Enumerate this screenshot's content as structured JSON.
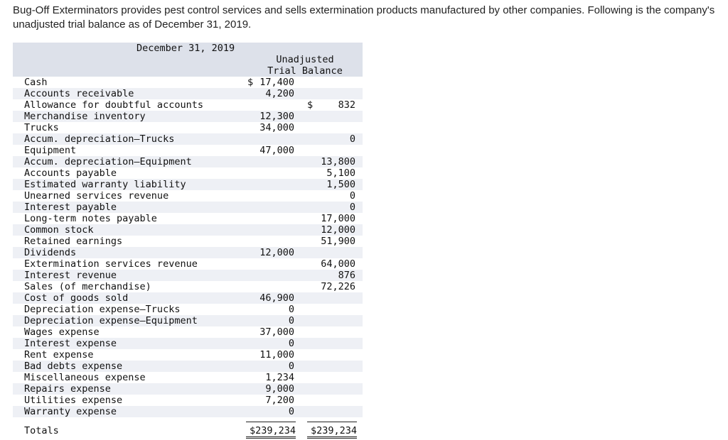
{
  "intro_text": "Bug-Off Exterminators provides pest control services and sells extermination products manufactured by other companies. Following is the company's unadjusted trial balance as of December 31, 2019.",
  "table": {
    "date_header": "December 31, 2019",
    "column_header_line1": "Unadjusted",
    "column_header_line2": "Trial Balance",
    "rows": [
      {
        "name": "Cash",
        "debit": "17,400",
        "credit": "",
        "debit_symbol": "$",
        "credit_symbol": ""
      },
      {
        "name": "Accounts receivable",
        "debit": "4,200",
        "credit": "",
        "debit_symbol": "",
        "credit_symbol": ""
      },
      {
        "name": "Allowance for doubtful accounts",
        "debit": "",
        "credit": "832",
        "debit_symbol": "",
        "credit_symbol": "$"
      },
      {
        "name": "Merchandise inventory",
        "debit": "12,300",
        "credit": "",
        "debit_symbol": "",
        "credit_symbol": ""
      },
      {
        "name": "Trucks",
        "debit": "34,000",
        "credit": "",
        "debit_symbol": "",
        "credit_symbol": ""
      },
      {
        "name": "Accum. depreciation—Trucks",
        "debit": "",
        "credit": "0",
        "debit_symbol": "",
        "credit_symbol": ""
      },
      {
        "name": "Equipment",
        "debit": "47,000",
        "credit": "",
        "debit_symbol": "",
        "credit_symbol": ""
      },
      {
        "name": "Accum. depreciation—Equipment",
        "debit": "",
        "credit": "13,800",
        "debit_symbol": "",
        "credit_symbol": ""
      },
      {
        "name": "Accounts payable",
        "debit": "",
        "credit": "5,100",
        "debit_symbol": "",
        "credit_symbol": ""
      },
      {
        "name": "Estimated warranty liability",
        "debit": "",
        "credit": "1,500",
        "debit_symbol": "",
        "credit_symbol": ""
      },
      {
        "name": "Unearned services revenue",
        "debit": "",
        "credit": "0",
        "debit_symbol": "",
        "credit_symbol": ""
      },
      {
        "name": "Interest payable",
        "debit": "",
        "credit": "0",
        "debit_symbol": "",
        "credit_symbol": ""
      },
      {
        "name": "Long-term notes payable",
        "debit": "",
        "credit": "17,000",
        "debit_symbol": "",
        "credit_symbol": ""
      },
      {
        "name": "Common stock",
        "debit": "",
        "credit": "12,000",
        "debit_symbol": "",
        "credit_symbol": ""
      },
      {
        "name": "Retained earnings",
        "debit": "",
        "credit": "51,900",
        "debit_symbol": "",
        "credit_symbol": ""
      },
      {
        "name": "Dividends",
        "debit": "12,000",
        "credit": "",
        "debit_symbol": "",
        "credit_symbol": ""
      },
      {
        "name": "Extermination services revenue",
        "debit": "",
        "credit": "64,000",
        "debit_symbol": "",
        "credit_symbol": ""
      },
      {
        "name": "Interest revenue",
        "debit": "",
        "credit": "876",
        "debit_symbol": "",
        "credit_symbol": ""
      },
      {
        "name": "Sales (of merchandise)",
        "debit": "",
        "credit": "72,226",
        "debit_symbol": "",
        "credit_symbol": ""
      },
      {
        "name": "Cost of goods sold",
        "debit": "46,900",
        "credit": "",
        "debit_symbol": "",
        "credit_symbol": ""
      },
      {
        "name": "Depreciation expense—Trucks",
        "debit": "0",
        "credit": "",
        "debit_symbol": "",
        "credit_symbol": ""
      },
      {
        "name": "Depreciation expense—Equipment",
        "debit": "0",
        "credit": "",
        "debit_symbol": "",
        "credit_symbol": ""
      },
      {
        "name": "Wages expense",
        "debit": "37,000",
        "credit": "",
        "debit_symbol": "",
        "credit_symbol": ""
      },
      {
        "name": "Interest expense",
        "debit": "0",
        "credit": "",
        "debit_symbol": "",
        "credit_symbol": ""
      },
      {
        "name": "Rent expense",
        "debit": "11,000",
        "credit": "",
        "debit_symbol": "",
        "credit_symbol": ""
      },
      {
        "name": "Bad debts expense",
        "debit": "0",
        "credit": "",
        "debit_symbol": "",
        "credit_symbol": ""
      },
      {
        "name": "Miscellaneous expense",
        "debit": "1,234",
        "credit": "",
        "debit_symbol": "",
        "credit_symbol": ""
      },
      {
        "name": "Repairs expense",
        "debit": "9,000",
        "credit": "",
        "debit_symbol": "",
        "credit_symbol": ""
      },
      {
        "name": "Utilities expense",
        "debit": "7,200",
        "credit": "",
        "debit_symbol": "",
        "credit_symbol": ""
      },
      {
        "name": "Warranty expense",
        "debit": "0",
        "credit": "",
        "debit_symbol": "",
        "credit_symbol": ""
      }
    ],
    "totals": {
      "label": "Totals",
      "debit": "$239,234",
      "credit": "$239,234"
    }
  },
  "colors": {
    "header_bg": "#dde1ea",
    "stripe_bg": "#eef0f5",
    "text": "#111111"
  }
}
